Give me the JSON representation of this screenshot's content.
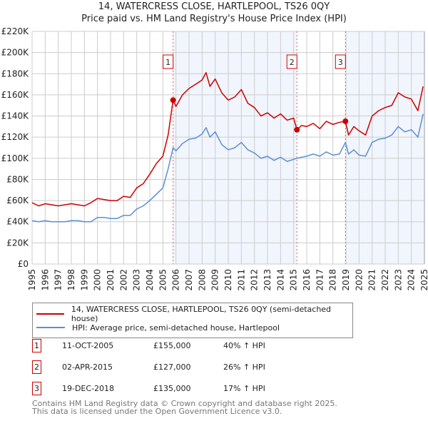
{
  "chart_data": {
    "type": "line",
    "title": "14, WATERCRESS CLOSE, HARTLEPOOL, TS26 0QY",
    "subtitle": "Price paid vs. HM Land Registry's House Price Index (HPI)",
    "xlim": [
      1995,
      2025
    ],
    "ylim": [
      0,
      220000
    ],
    "yticks": [
      0,
      20000,
      40000,
      60000,
      80000,
      100000,
      120000,
      140000,
      160000,
      180000,
      200000,
      220000
    ],
    "ytick_labels": [
      "£0",
      "£20K",
      "£40K",
      "£60K",
      "£80K",
      "£100K",
      "£120K",
      "£140K",
      "£160K",
      "£180K",
      "£200K",
      "£220K"
    ],
    "xticks": [
      "1995",
      "1996",
      "1997",
      "1998",
      "1999",
      "2000",
      "2001",
      "2002",
      "2003",
      "2004",
      "2005",
      "2006",
      "2007",
      "2008",
      "2009",
      "2010",
      "2011",
      "2012",
      "2013",
      "2014",
      "2015",
      "2016",
      "2017",
      "2018",
      "2019",
      "2020",
      "2021",
      "2022",
      "2023",
      "2024",
      "2025"
    ],
    "grid": true,
    "series": [
      {
        "name": "14, WATERCRESS CLOSE, HARTLEPOOL, TS26 0QY (semi-detached house)",
        "color": "#cc0000",
        "x": [
          1995,
          1995.5,
          1996,
          1996.5,
          1997,
          1997.5,
          1998,
          1998.5,
          1999,
          1999.5,
          2000,
          2000.5,
          2001,
          2001.5,
          2002,
          2002.5,
          2003,
          2003.5,
          2004,
          2004.5,
          2005,
          2005.4,
          2005.78,
          2006,
          2006.5,
          2007,
          2007.5,
          2008,
          2008.3,
          2008.6,
          2009,
          2009.5,
          2010,
          2010.5,
          2011,
          2011.5,
          2012,
          2012.5,
          2013,
          2013.5,
          2014,
          2014.5,
          2015,
          2015.25,
          2015.6,
          2016,
          2016.5,
          2017,
          2017.5,
          2018,
          2018.5,
          2018.96,
          2019.2,
          2019.6,
          2020,
          2020.5,
          2021,
          2021.5,
          2022,
          2022.5,
          2023,
          2023.5,
          2024,
          2024.5,
          2024.9
        ],
        "y": [
          58000,
          55000,
          57000,
          56000,
          55000,
          56000,
          57000,
          56000,
          55000,
          58000,
          62000,
          61000,
          60000,
          60000,
          64000,
          63000,
          72000,
          76000,
          85000,
          95000,
          102000,
          122000,
          155000,
          149000,
          160000,
          166000,
          170000,
          174000,
          181000,
          168000,
          175000,
          162000,
          155000,
          158000,
          165000,
          152000,
          148000,
          140000,
          143000,
          138000,
          142000,
          136000,
          138000,
          127000,
          131000,
          130000,
          133000,
          128000,
          135000,
          132000,
          134000,
          135000,
          122000,
          130000,
          126000,
          122000,
          140000,
          145000,
          148000,
          150000,
          162000,
          158000,
          156000,
          145000,
          168000
        ]
      },
      {
        "name": "HPI: Average price, semi-detached house, Hartlepool",
        "color": "#5b8fd4",
        "x": [
          1995,
          1995.5,
          1996,
          1996.5,
          1997,
          1997.5,
          1998,
          1998.5,
          1999,
          1999.5,
          2000,
          2000.5,
          2001,
          2001.5,
          2002,
          2002.5,
          2003,
          2003.5,
          2004,
          2004.5,
          2005,
          2005.4,
          2005.78,
          2006,
          2006.5,
          2007,
          2007.5,
          2008,
          2008.3,
          2008.6,
          2009,
          2009.5,
          2010,
          2010.5,
          2011,
          2011.5,
          2012,
          2012.5,
          2013,
          2013.5,
          2014,
          2014.5,
          2015,
          2015.25,
          2015.6,
          2016,
          2016.5,
          2017,
          2017.5,
          2018,
          2018.5,
          2018.96,
          2019.2,
          2019.6,
          2020,
          2020.5,
          2021,
          2021.5,
          2022,
          2022.5,
          2023,
          2023.5,
          2024,
          2024.5,
          2024.9
        ],
        "y": [
          41000,
          40000,
          41000,
          40000,
          40000,
          40000,
          41000,
          41000,
          40000,
          40000,
          44000,
          44000,
          43000,
          43000,
          46000,
          46000,
          52000,
          55000,
          60000,
          66000,
          72000,
          90000,
          110000,
          107000,
          114000,
          118000,
          119000,
          123000,
          129000,
          120000,
          125000,
          113000,
          108000,
          110000,
          115000,
          108000,
          105000,
          100000,
          102000,
          98000,
          101000,
          97000,
          99000,
          100000,
          101000,
          102000,
          104000,
          102000,
          106000,
          103000,
          104000,
          115000,
          104000,
          108000,
          103000,
          102000,
          115000,
          118000,
          119000,
          122000,
          130000,
          125000,
          127000,
          120000,
          142000
        ]
      }
    ],
    "sales": [
      {
        "label": "1",
        "x": 2005.78,
        "y": 155000,
        "date": "11-OCT-2005",
        "price": "£155,000",
        "hpi": "40% ↑ HPI"
      },
      {
        "label": "2",
        "x": 2015.25,
        "y": 127000,
        "date": "02-APR-2015",
        "price": "£127,000",
        "hpi": "26% ↑ HPI"
      },
      {
        "label": "3",
        "x": 2018.96,
        "y": 135000,
        "date": "19-DEC-2018",
        "price": "£135,000",
        "hpi": "17% ↑ HPI"
      }
    ],
    "legend_placement": "bottom"
  },
  "footer": {
    "line1": "Contains HM Land Registry data © Crown copyright and database right 2025.",
    "line2": "This data is licensed under the Open Government Licence v3.0."
  }
}
